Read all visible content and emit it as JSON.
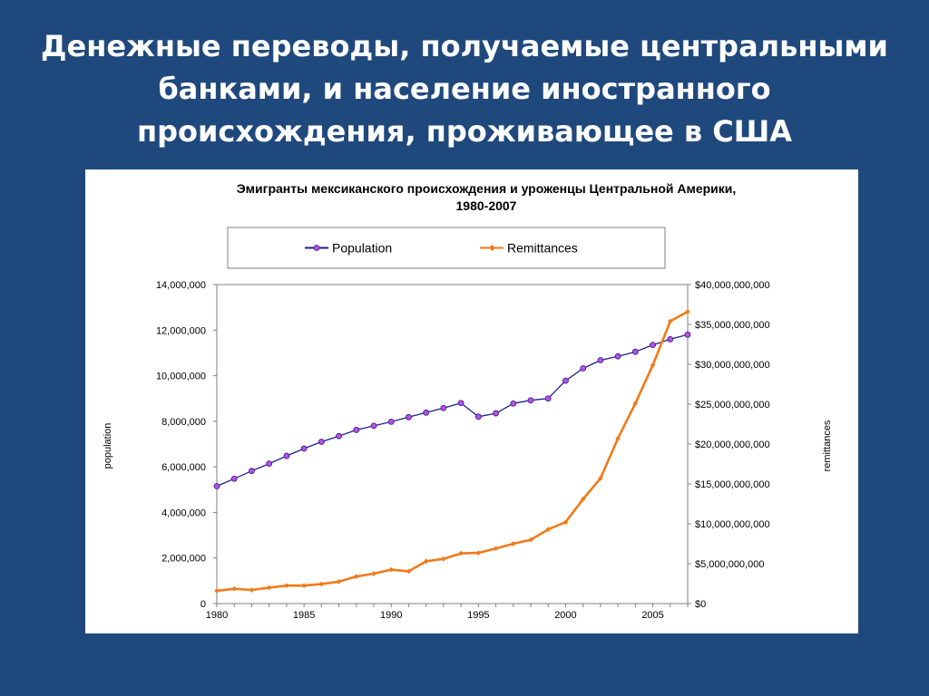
{
  "slide": {
    "title_lines": [
      "Денежные переводы, получаемые центральными",
      "банками, и население иностранного",
      "происхождения, проживающее в США"
    ]
  },
  "colors": {
    "background": "#1f497d",
    "population": "#1f1f8f",
    "population_marker": "#c04de0",
    "remittances": "#f07a1a"
  },
  "chart_data": {
    "type": "line",
    "title_lines": [
      "Эмигранты мексиканского происхождения и уроженцы Центральной Америки,",
      "1980-2007"
    ],
    "legend": [
      "Population",
      "Remittances"
    ],
    "legend_position": "top",
    "grid": false,
    "x": [
      1980,
      1981,
      1982,
      1983,
      1984,
      1985,
      1986,
      1987,
      1988,
      1989,
      1990,
      1991,
      1992,
      1993,
      1994,
      1995,
      1996,
      1997,
      1998,
      1999,
      2000,
      2001,
      2002,
      2003,
      2004,
      2005,
      2006,
      2007
    ],
    "xlim": [
      1980,
      2007
    ],
    "x_ticks": [
      "1980",
      "1985",
      "1990",
      "1995",
      "2000",
      "2005"
    ],
    "ylabel_left": "population",
    "ylabel_right": "remittances",
    "ylim_left": [
      0,
      14000000
    ],
    "ylim_right": [
      0,
      40000000000
    ],
    "y_ticks_left": [
      "0",
      "2,000,000",
      "4,000,000",
      "6,000,000",
      "8,000,000",
      "10,000,000",
      "12,000,000",
      "14,000,000"
    ],
    "y_ticks_right": [
      "$0",
      "$5,000,000,000",
      "$10,000,000,000",
      "$15,000,000,000",
      "$20,000,000,000",
      "$25,000,000,000",
      "$30,000,000,000",
      "$35,000,000,000",
      "$40,000,000,000"
    ],
    "series": [
      {
        "name": "Population",
        "axis": "left",
        "values": [
          5150000,
          5480000,
          5820000,
          6140000,
          6480000,
          6800000,
          7100000,
          7350000,
          7620000,
          7800000,
          7980000,
          8180000,
          8380000,
          8580000,
          8800000,
          8200000,
          8350000,
          8780000,
          8920000,
          9000000,
          9780000,
          10320000,
          10680000,
          10850000,
          11050000,
          11350000,
          11600000,
          11800000
        ]
      },
      {
        "name": "Remittances",
        "axis": "right",
        "values": [
          1600000000,
          1850000000,
          1700000000,
          2000000000,
          2250000000,
          2250000000,
          2450000000,
          2750000000,
          3400000000,
          3750000000,
          4250000000,
          4050000000,
          5300000000,
          5600000000,
          6300000000,
          6350000000,
          6900000000,
          7500000000,
          8000000000,
          9300000000,
          10200000000,
          13100000000,
          15700000000,
          20700000000,
          25100000000,
          29900000000,
          35400000000,
          36600000000
        ]
      }
    ]
  }
}
